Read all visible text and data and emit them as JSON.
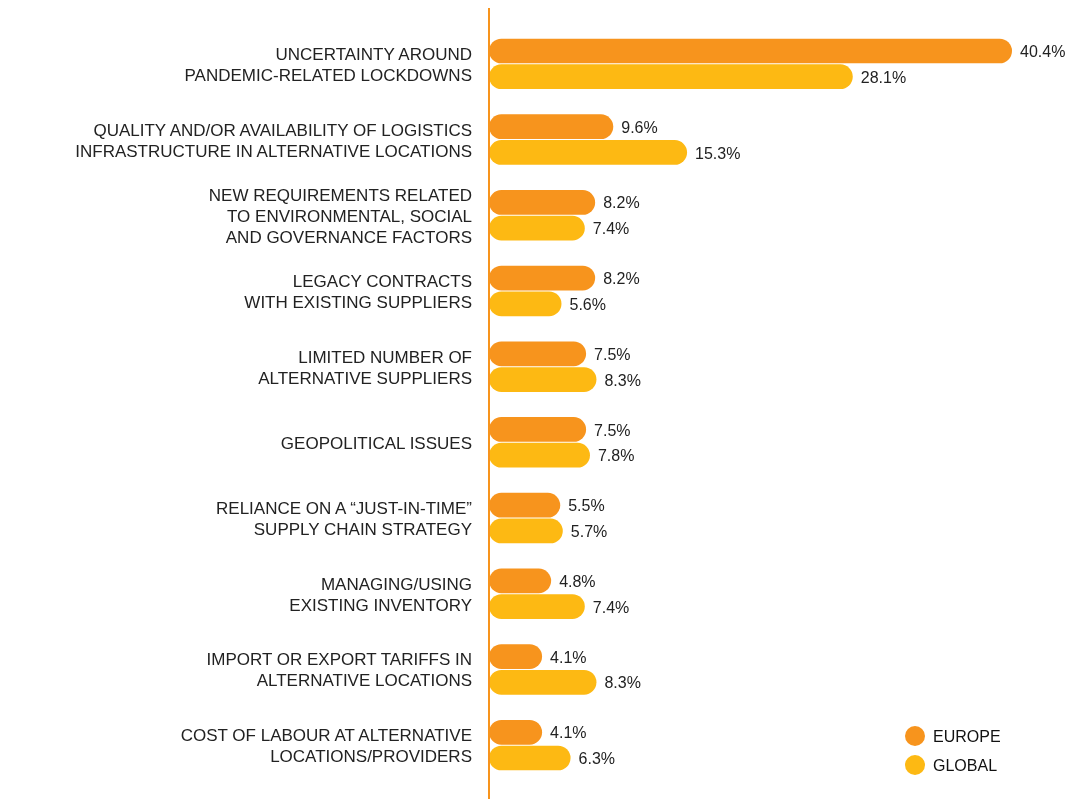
{
  "chart_data": {
    "type": "bar",
    "orientation": "horizontal",
    "categories": [
      "UNCERTAINTY AROUND\nPANDEMIC-RELATED LOCKDOWNS",
      "QUALITY AND/OR AVAILABILITY OF LOGISTICS\nINFRASTRUCTURE IN ALTERNATIVE LOCATIONS",
      "NEW REQUIREMENTS RELATED\nTO ENVIRONMENTAL, SOCIAL\nAND GOVERNANCE FACTORS",
      "LEGACY CONTRACTS\nWITH EXISTING SUPPLIERS",
      "LIMITED NUMBER OF\nALTERNATIVE SUPPLIERS",
      "GEOPOLITICAL ISSUES",
      "RELIANCE ON A “JUST-IN-TIME”\nSUPPLY CHAIN STRATEGY",
      "MANAGING/USING\nEXISTING INVENTORY",
      "IMPORT OR EXPORT TARIFFS IN\nALTERNATIVE LOCATIONS",
      "COST OF LABOUR AT ALTERNATIVE\nLOCATIONS/PROVIDERS"
    ],
    "series": [
      {
        "name": "EUROPE",
        "color": "#f7941d",
        "values": [
          40.4,
          9.6,
          8.2,
          8.2,
          7.5,
          7.5,
          5.5,
          4.8,
          4.1,
          4.1
        ],
        "value_labels": [
          "40.4%",
          "9.6%",
          "8.2%",
          "8.2%",
          "7.5%",
          "7.5%",
          "5.5%",
          "4.8%",
          "4.1%",
          "4.1%"
        ]
      },
      {
        "name": "GLOBAL",
        "color": "#fdb913",
        "values": [
          28.1,
          15.3,
          7.4,
          5.6,
          8.3,
          7.8,
          5.7,
          7.4,
          8.3,
          6.3
        ],
        "value_labels": [
          "28.1%",
          "15.3%",
          "7.4%",
          "5.6%",
          "8.3%",
          "7.8%",
          "5.7%",
          "7.4%",
          "8.3%",
          "6.3%"
        ]
      }
    ],
    "legend": "bottom right"
  }
}
